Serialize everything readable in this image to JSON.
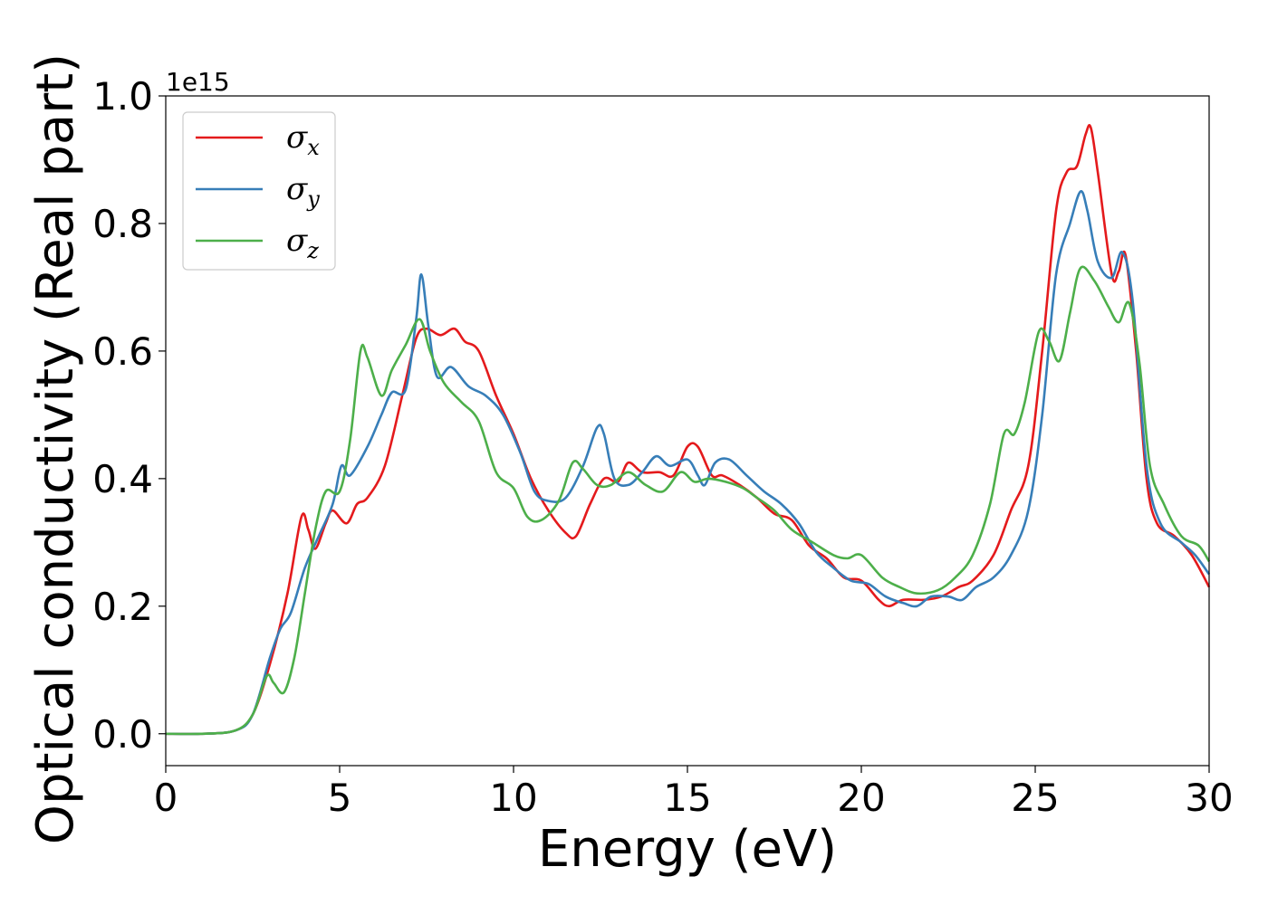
{
  "chart_data": {
    "type": "line",
    "title": "",
    "xlabel": "Energy (eV)",
    "ylabel": "Optical conductivity (Real part)",
    "y_offset_label": "1e15",
    "xlim": [
      0,
      30
    ],
    "ylim": [
      -0.05,
      1.0
    ],
    "x_ticks": [
      0,
      5,
      10,
      15,
      20,
      25,
      30
    ],
    "x_tick_labels": [
      "0",
      "5",
      "10",
      "15",
      "20",
      "25",
      "30"
    ],
    "y_ticks": [
      0.0,
      0.2,
      0.4,
      0.6,
      0.8,
      1.0
    ],
    "y_tick_labels": [
      "0.0",
      "0.2",
      "0.4",
      "0.6",
      "0.8",
      "1.0"
    ],
    "grid": false,
    "legend_position": "top-left",
    "series": [
      {
        "name": "σx",
        "symbol": "σ",
        "subscript": "x",
        "color": "#e41a1c",
        "points": [
          [
            0,
            0.0
          ],
          [
            1,
            0.0
          ],
          [
            2,
            0.005
          ],
          [
            2.5,
            0.03
          ],
          [
            3,
            0.11
          ],
          [
            3.5,
            0.22
          ],
          [
            3.9,
            0.34
          ],
          [
            4.1,
            0.32
          ],
          [
            4.3,
            0.29
          ],
          [
            4.6,
            0.33
          ],
          [
            4.8,
            0.35
          ],
          [
            5.2,
            0.33
          ],
          [
            5.5,
            0.36
          ],
          [
            5.8,
            0.37
          ],
          [
            6.3,
            0.42
          ],
          [
            6.8,
            0.53
          ],
          [
            7.2,
            0.62
          ],
          [
            7.5,
            0.635
          ],
          [
            7.9,
            0.625
          ],
          [
            8.3,
            0.635
          ],
          [
            8.6,
            0.615
          ],
          [
            9,
            0.6
          ],
          [
            9.5,
            0.53
          ],
          [
            10,
            0.47
          ],
          [
            10.5,
            0.4
          ],
          [
            11,
            0.35
          ],
          [
            11.5,
            0.315
          ],
          [
            11.8,
            0.31
          ],
          [
            12.2,
            0.36
          ],
          [
            12.6,
            0.4
          ],
          [
            13,
            0.395
          ],
          [
            13.3,
            0.425
          ],
          [
            13.7,
            0.41
          ],
          [
            14.2,
            0.41
          ],
          [
            14.6,
            0.405
          ],
          [
            15,
            0.45
          ],
          [
            15.3,
            0.45
          ],
          [
            15.7,
            0.405
          ],
          [
            16,
            0.405
          ],
          [
            16.5,
            0.39
          ],
          [
            17,
            0.37
          ],
          [
            17.5,
            0.345
          ],
          [
            18,
            0.335
          ],
          [
            18.5,
            0.295
          ],
          [
            19,
            0.275
          ],
          [
            19.5,
            0.245
          ],
          [
            20,
            0.24
          ],
          [
            20.5,
            0.21
          ],
          [
            20.8,
            0.2
          ],
          [
            21.2,
            0.21
          ],
          [
            21.8,
            0.21
          ],
          [
            22.3,
            0.215
          ],
          [
            22.8,
            0.23
          ],
          [
            23.2,
            0.24
          ],
          [
            23.8,
            0.28
          ],
          [
            24.3,
            0.35
          ],
          [
            24.8,
            0.42
          ],
          [
            25.2,
            0.6
          ],
          [
            25.6,
            0.82
          ],
          [
            25.9,
            0.88
          ],
          [
            26.2,
            0.89
          ],
          [
            26.45,
            0.94
          ],
          [
            26.6,
            0.95
          ],
          [
            26.8,
            0.88
          ],
          [
            27.2,
            0.72
          ],
          [
            27.4,
            0.725
          ],
          [
            27.6,
            0.75
          ],
          [
            27.9,
            0.6
          ],
          [
            28.2,
            0.4
          ],
          [
            28.5,
            0.33
          ],
          [
            29,
            0.31
          ],
          [
            29.5,
            0.28
          ],
          [
            30,
            0.23
          ]
        ]
      },
      {
        "name": "σy",
        "symbol": "σ",
        "subscript": "y",
        "color": "#377eb8",
        "points": [
          [
            0,
            0.0
          ],
          [
            1,
            0.0
          ],
          [
            2,
            0.005
          ],
          [
            2.5,
            0.03
          ],
          [
            3,
            0.12
          ],
          [
            3.3,
            0.165
          ],
          [
            3.6,
            0.19
          ],
          [
            4,
            0.26
          ],
          [
            4.4,
            0.31
          ],
          [
            4.8,
            0.36
          ],
          [
            5.05,
            0.42
          ],
          [
            5.3,
            0.405
          ],
          [
            5.8,
            0.45
          ],
          [
            6.2,
            0.5
          ],
          [
            6.5,
            0.535
          ],
          [
            6.9,
            0.54
          ],
          [
            7.2,
            0.65
          ],
          [
            7.35,
            0.72
          ],
          [
            7.55,
            0.64
          ],
          [
            7.8,
            0.56
          ],
          [
            8.2,
            0.575
          ],
          [
            8.7,
            0.545
          ],
          [
            9.2,
            0.53
          ],
          [
            9.7,
            0.5
          ],
          [
            10.2,
            0.44
          ],
          [
            10.6,
            0.38
          ],
          [
            11,
            0.365
          ],
          [
            11.5,
            0.37
          ],
          [
            12,
            0.42
          ],
          [
            12.4,
            0.48
          ],
          [
            12.6,
            0.47
          ],
          [
            12.9,
            0.4
          ],
          [
            13.3,
            0.39
          ],
          [
            13.7,
            0.41
          ],
          [
            14.1,
            0.435
          ],
          [
            14.5,
            0.42
          ],
          [
            15,
            0.43
          ],
          [
            15.3,
            0.405
          ],
          [
            15.5,
            0.39
          ],
          [
            15.8,
            0.425
          ],
          [
            16.2,
            0.43
          ],
          [
            16.7,
            0.405
          ],
          [
            17.2,
            0.38
          ],
          [
            17.7,
            0.36
          ],
          [
            18.2,
            0.33
          ],
          [
            18.7,
            0.285
          ],
          [
            19.2,
            0.26
          ],
          [
            19.7,
            0.24
          ],
          [
            20.2,
            0.235
          ],
          [
            20.7,
            0.215
          ],
          [
            21.2,
            0.205
          ],
          [
            21.6,
            0.2
          ],
          [
            22,
            0.215
          ],
          [
            22.5,
            0.215
          ],
          [
            22.9,
            0.21
          ],
          [
            23.3,
            0.23
          ],
          [
            23.8,
            0.245
          ],
          [
            24.3,
            0.28
          ],
          [
            24.8,
            0.35
          ],
          [
            25.2,
            0.5
          ],
          [
            25.6,
            0.72
          ],
          [
            26,
            0.8
          ],
          [
            26.3,
            0.85
          ],
          [
            26.5,
            0.82
          ],
          [
            26.8,
            0.74
          ],
          [
            27.2,
            0.715
          ],
          [
            27.5,
            0.755
          ],
          [
            27.8,
            0.68
          ],
          [
            28.2,
            0.42
          ],
          [
            28.6,
            0.33
          ],
          [
            29.2,
            0.3
          ],
          [
            29.6,
            0.28
          ],
          [
            30,
            0.25
          ]
        ]
      },
      {
        "name": "σz",
        "symbol": "σ",
        "subscript": "z",
        "color": "#4daf4a",
        "points": [
          [
            0,
            0.0
          ],
          [
            1,
            0.0
          ],
          [
            2,
            0.005
          ],
          [
            2.5,
            0.03
          ],
          [
            2.9,
            0.09
          ],
          [
            3.1,
            0.08
          ],
          [
            3.4,
            0.065
          ],
          [
            3.7,
            0.12
          ],
          [
            4,
            0.22
          ],
          [
            4.3,
            0.32
          ],
          [
            4.6,
            0.38
          ],
          [
            5,
            0.38
          ],
          [
            5.3,
            0.46
          ],
          [
            5.6,
            0.6
          ],
          [
            5.8,
            0.59
          ],
          [
            6.2,
            0.53
          ],
          [
            6.5,
            0.57
          ],
          [
            6.9,
            0.61
          ],
          [
            7.3,
            0.65
          ],
          [
            7.6,
            0.6
          ],
          [
            8,
            0.55
          ],
          [
            8.5,
            0.52
          ],
          [
            9,
            0.49
          ],
          [
            9.5,
            0.41
          ],
          [
            10,
            0.385
          ],
          [
            10.4,
            0.34
          ],
          [
            10.8,
            0.335
          ],
          [
            11.3,
            0.365
          ],
          [
            11.7,
            0.425
          ],
          [
            12,
            0.415
          ],
          [
            12.4,
            0.39
          ],
          [
            12.8,
            0.39
          ],
          [
            13.3,
            0.41
          ],
          [
            13.8,
            0.39
          ],
          [
            14.3,
            0.38
          ],
          [
            14.8,
            0.41
          ],
          [
            15.2,
            0.395
          ],
          [
            15.6,
            0.4
          ],
          [
            16.1,
            0.395
          ],
          [
            16.6,
            0.385
          ],
          [
            17,
            0.37
          ],
          [
            17.5,
            0.35
          ],
          [
            18,
            0.32
          ],
          [
            18.6,
            0.3
          ],
          [
            19.2,
            0.28
          ],
          [
            19.6,
            0.275
          ],
          [
            20,
            0.28
          ],
          [
            20.6,
            0.245
          ],
          [
            21.1,
            0.23
          ],
          [
            21.6,
            0.22
          ],
          [
            22.2,
            0.225
          ],
          [
            22.7,
            0.245
          ],
          [
            23.2,
            0.28
          ],
          [
            23.7,
            0.36
          ],
          [
            24.1,
            0.47
          ],
          [
            24.4,
            0.47
          ],
          [
            24.7,
            0.52
          ],
          [
            25.1,
            0.63
          ],
          [
            25.4,
            0.615
          ],
          [
            25.7,
            0.585
          ],
          [
            26,
            0.66
          ],
          [
            26.3,
            0.73
          ],
          [
            26.7,
            0.71
          ],
          [
            27.1,
            0.67
          ],
          [
            27.4,
            0.645
          ],
          [
            27.7,
            0.675
          ],
          [
            28,
            0.58
          ],
          [
            28.3,
            0.42
          ],
          [
            28.7,
            0.36
          ],
          [
            29.2,
            0.31
          ],
          [
            29.7,
            0.295
          ],
          [
            30,
            0.27
          ]
        ]
      }
    ]
  }
}
